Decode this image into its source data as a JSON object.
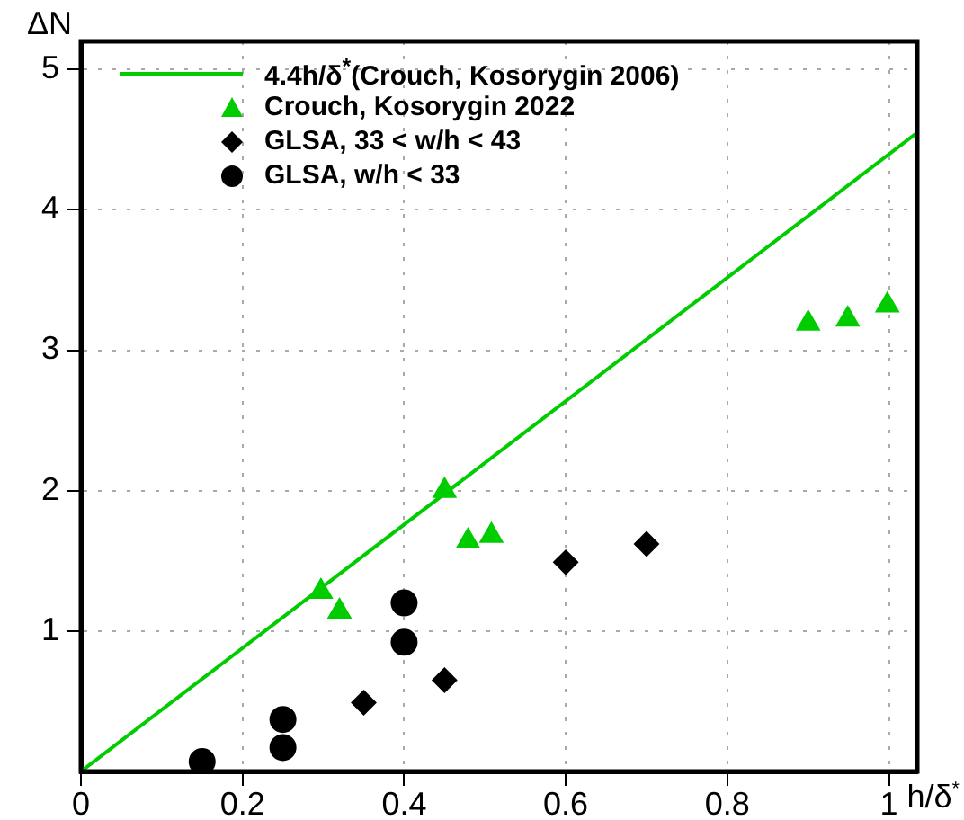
{
  "chart_data": {
    "type": "scatter",
    "xlabel": "h/δ$^{*}$",
    "ylabel": "ΔN",
    "xlim": [
      0,
      1.035
    ],
    "ylim": [
      0,
      5.2
    ],
    "xticks": [
      0,
      0.2,
      0.4,
      0.6,
      0.8,
      1
    ],
    "yticks": [
      1,
      2,
      3,
      4,
      5
    ],
    "grid": true,
    "legend": "top left",
    "series": [
      {
        "name": "4.4h/δ$^{*}$(Crouch, Kosorygin 2006)",
        "type": "line",
        "marker": "none",
        "color": "#00cc00",
        "x": [
          0,
          1.035
        ],
        "values": [
          0,
          4.55
        ]
      },
      {
        "name": "Crouch, Kosorygin 2022",
        "marker": "triangle",
        "color": "#00cc00",
        "x": [
          0.297,
          0.32,
          0.45,
          0.479,
          0.508,
          0.9,
          0.949,
          0.998
        ],
        "values": [
          1.28,
          1.14,
          2.0,
          1.64,
          1.68,
          3.19,
          3.22,
          3.32
        ]
      },
      {
        "name": "GLSA, 33 < w/h < 43",
        "marker": "diamond",
        "color": "#000000",
        "x": [
          0.35,
          0.45,
          0.6,
          0.7
        ],
        "values": [
          0.49,
          0.65,
          1.49,
          1.62
        ]
      },
      {
        "name": "GLSA, w/h < 33",
        "marker": "circle",
        "color": "#000000",
        "x": [
          0.15,
          0.25,
          0.25,
          0.4,
          0.4
        ],
        "values": [
          0.07,
          0.17,
          0.37,
          0.92,
          1.2
        ]
      }
    ]
  }
}
